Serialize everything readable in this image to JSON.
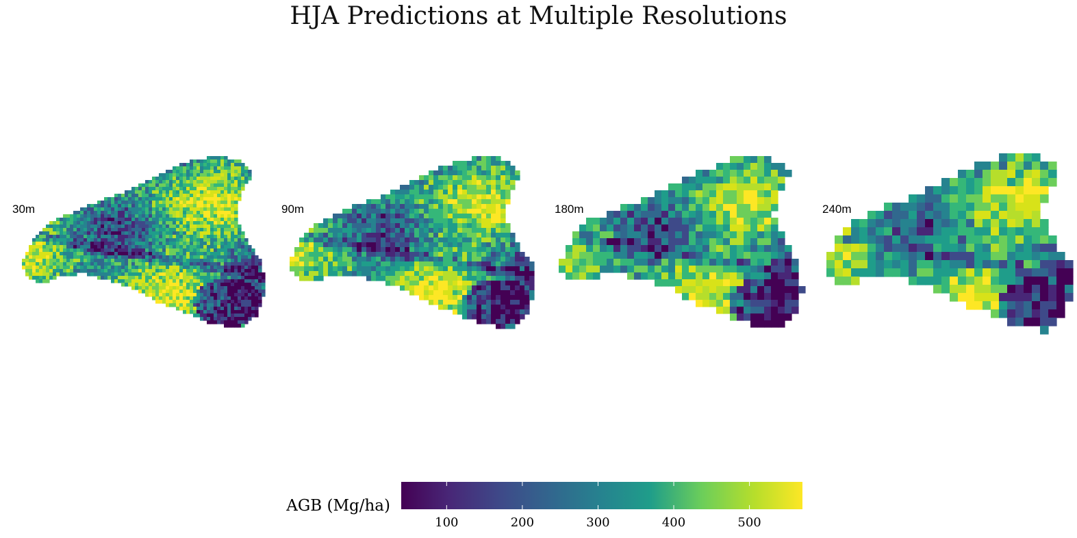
{
  "title": "HJA Predictions at Multiple Resolutions",
  "panels": [
    {
      "label": "30m",
      "resolution_m": 30
    },
    {
      "label": "90m",
      "resolution_m": 90
    },
    {
      "label": "180m",
      "resolution_m": 180
    },
    {
      "label": "240m",
      "resolution_m": 240
    }
  ],
  "colorbar": {
    "label": "AGB (Mg/ha)",
    "colormap": "viridis",
    "range": [
      40,
      570
    ],
    "ticks": [
      "100",
      "200",
      "300",
      "400",
      "500"
    ],
    "tick_values": [
      100,
      200,
      300,
      400,
      500
    ]
  }
}
